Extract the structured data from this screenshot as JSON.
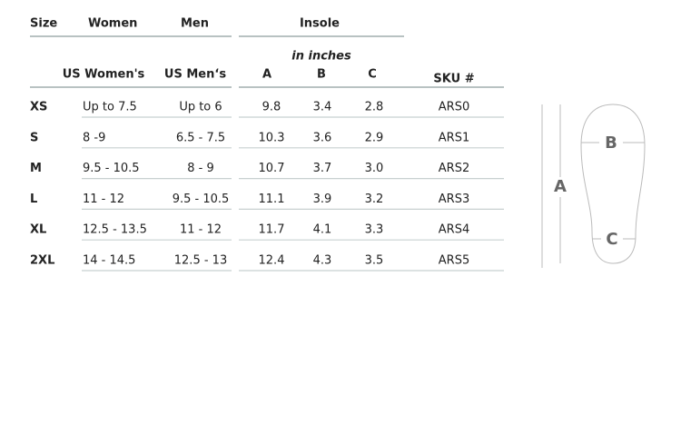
{
  "header": {
    "size": "Size",
    "women": "Women",
    "men": "Men",
    "insole": "Insole"
  },
  "units": "in inches",
  "columns": [
    "US Women's",
    "US Men‘s",
    "A",
    "B",
    "C",
    "SKU #"
  ],
  "rows": [
    [
      "XS",
      "Up to 7.5",
      "Up to 6",
      "9.8",
      "3.4",
      "2.8",
      "ARS0"
    ],
    [
      "S",
      "8 -9",
      "6.5 - 7.5",
      "10.3",
      "3.6",
      "2.9",
      "ARS1"
    ],
    [
      "M",
      "9.5 - 10.5",
      "8 - 9",
      "10.7",
      "3.7",
      "3.0",
      "ARS2"
    ],
    [
      "L",
      "11 - 12",
      "9.5 - 10.5",
      "11.1",
      "3.9",
      "3.2",
      "ARS3"
    ],
    [
      "XL",
      "12.5 - 13.5",
      "11 - 12",
      "11.7",
      "4.1",
      "3.3",
      "ARS4"
    ],
    [
      "2XL",
      "14 - 14.5",
      "12.5 - 13",
      "12.4",
      "4.3",
      "3.5",
      "ARS5"
    ]
  ],
  "diagram": {
    "a": "A",
    "b": "B",
    "c": "C"
  }
}
